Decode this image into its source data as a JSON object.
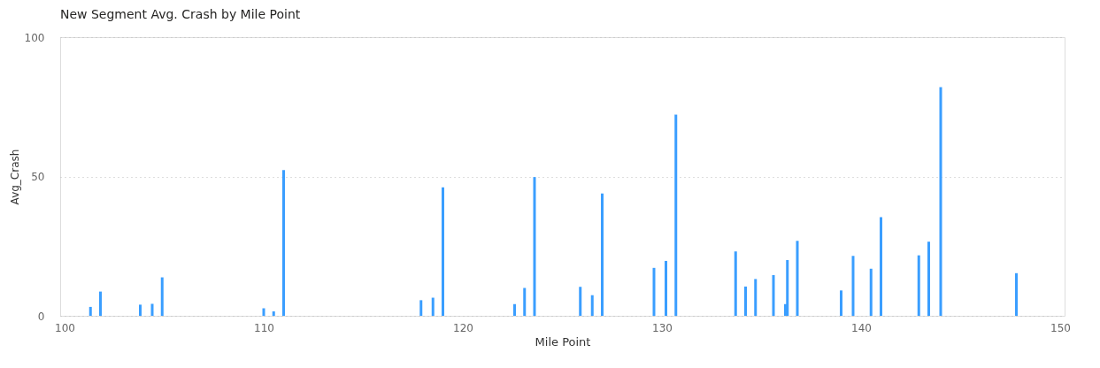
{
  "chart_data": {
    "type": "bar",
    "title": "New Segment Avg. Crash by Mile Point",
    "xlabel": "Mile Point",
    "ylabel": "Avg_Crash",
    "x": [
      101.3,
      101.8,
      103.8,
      104.4,
      104.9,
      110.0,
      110.5,
      111.0,
      117.9,
      118.5,
      119.0,
      122.6,
      123.1,
      123.6,
      125.9,
      126.5,
      127.0,
      129.6,
      130.2,
      130.7,
      133.7,
      134.2,
      134.7,
      135.6,
      136.2,
      136.3,
      136.8,
      139.0,
      139.6,
      140.5,
      141.0,
      142.9,
      143.4,
      144.0,
      147.8
    ],
    "values": [
      3.2,
      8.7,
      4.0,
      4.3,
      13.8,
      2.7,
      1.6,
      52.3,
      5.6,
      6.5,
      46.1,
      4.2,
      10.0,
      49.8,
      10.4,
      7.4,
      43.9,
      17.2,
      19.7,
      72.2,
      23.1,
      10.5,
      13.2,
      14.6,
      4.2,
      20.0,
      26.9,
      9.1,
      21.5,
      16.9,
      35.4,
      21.7,
      26.6,
      82.1,
      15.3
    ],
    "color": "#3a9eff",
    "xlim": [
      100,
      150
    ],
    "xticks": [
      100,
      110,
      120,
      130,
      140,
      150
    ],
    "ylim": [
      0,
      100
    ],
    "yticks": [
      0,
      50,
      100
    ],
    "grid": "y"
  }
}
